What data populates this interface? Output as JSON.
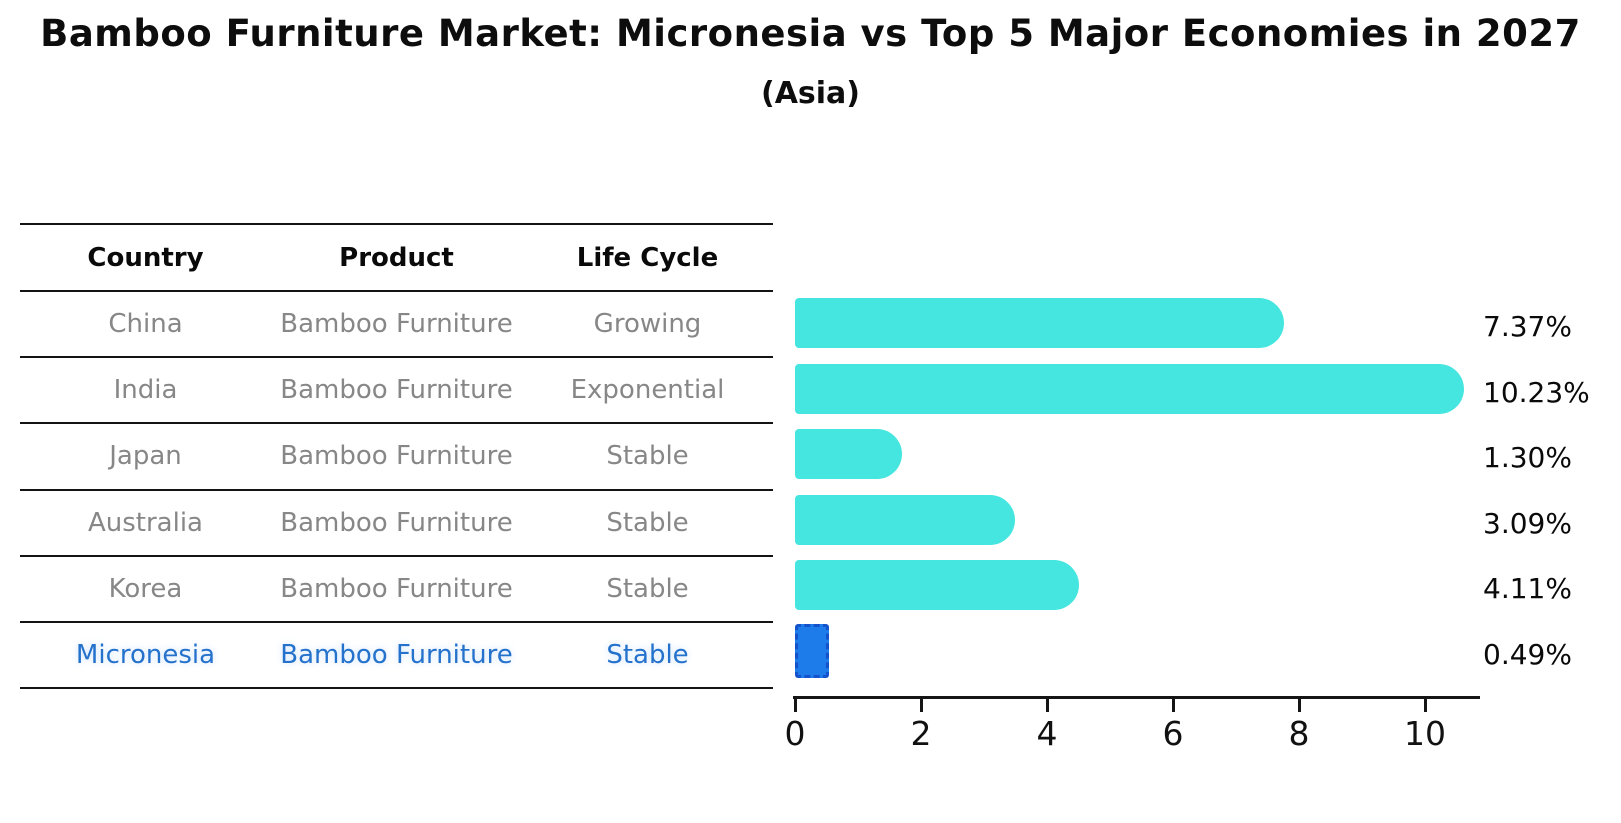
{
  "title": "Bamboo Furniture Market: Micronesia vs Top 5 Major Economies in 2027",
  "subtitle": "(Asia)",
  "table": {
    "headers": [
      "Country",
      "Product",
      "Life Cycle"
    ],
    "rows": [
      {
        "country": "China",
        "product": "Bamboo Furniture",
        "life_cycle": "Growing",
        "highlighted": false
      },
      {
        "country": "India",
        "product": "Bamboo Furniture",
        "life_cycle": "Exponential",
        "highlighted": false
      },
      {
        "country": "Japan",
        "product": "Bamboo Furniture",
        "life_cycle": "Stable",
        "highlighted": false
      },
      {
        "country": "Australia",
        "product": "Bamboo Furniture",
        "life_cycle": "Stable",
        "highlighted": false
      },
      {
        "country": "Korea",
        "product": "Bamboo Furniture",
        "life_cycle": "Stable",
        "highlighted": false
      },
      {
        "country": "Micronesia",
        "product": "Bamboo Furniture",
        "life_cycle": "Stable",
        "highlighted": true
      }
    ]
  },
  "chart_data": {
    "type": "bar",
    "orientation": "horizontal",
    "categories": [
      "China",
      "India",
      "Japan",
      "Australia",
      "Korea",
      "Micronesia"
    ],
    "values": [
      7.37,
      10.23,
      1.3,
      3.09,
      4.11,
      0.49
    ],
    "value_labels": [
      "7.37%",
      "10.23%",
      "1.30%",
      "3.09%",
      "4.11%",
      "0.49%"
    ],
    "x_ticks": [
      0,
      2,
      4,
      6,
      8,
      10
    ],
    "x_tick_labels": [
      "0",
      "2",
      "4",
      "6",
      "8",
      "10"
    ],
    "xlim": [
      0,
      10.9
    ],
    "grid": false,
    "legend": "none",
    "highlight_index": 5,
    "bar_color": "#45e6e0",
    "highlight_fill": "#1d7ce9",
    "highlight_border": "#1553cc",
    "text_color": "#0a0a0a",
    "muted_text_color": "#878787",
    "highlight_text_color": "#2572cc"
  }
}
